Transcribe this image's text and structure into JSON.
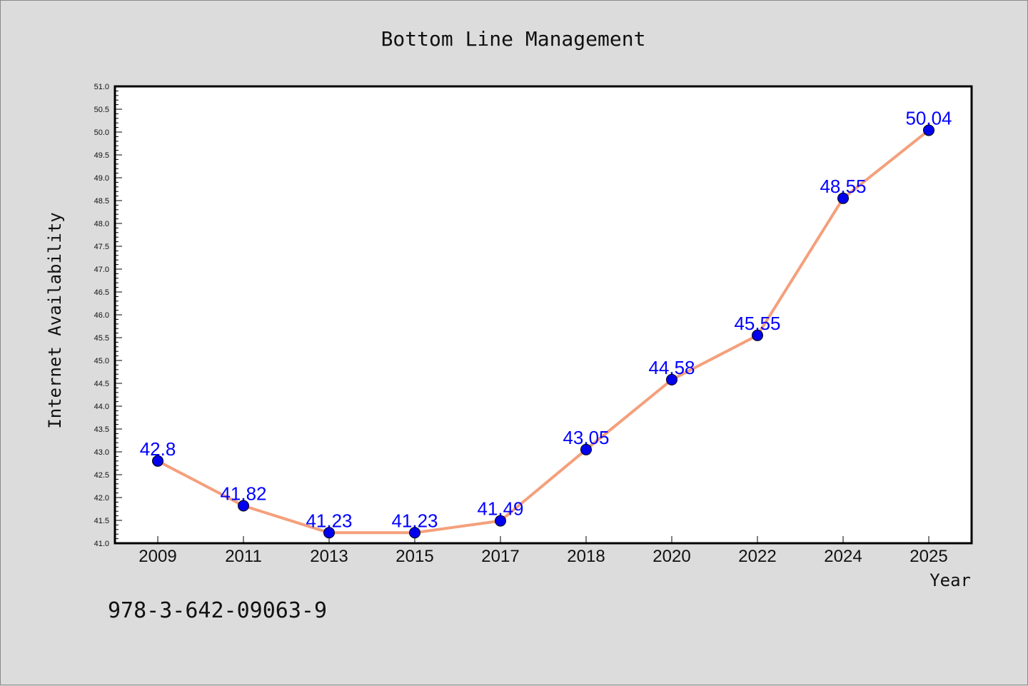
{
  "chart_data": {
    "type": "line",
    "title": "Bottom Line Management",
    "xlabel": "Year",
    "ylabel": "Internet Availability",
    "categories": [
      "2009",
      "2011",
      "2013",
      "2015",
      "2017",
      "2018",
      "2020",
      "2022",
      "2024",
      "2025"
    ],
    "series": [
      {
        "values": [
          42.8,
          41.82,
          41.23,
          41.23,
          41.49,
          43.05,
          44.58,
          45.55,
          48.55,
          50.04
        ],
        "labels": [
          "42.8",
          "41.82",
          "41.23",
          "41.23",
          "41.49",
          "43.05",
          "44.58",
          "45.55",
          "48.55",
          "50.04"
        ]
      }
    ],
    "ylim": [
      41.0,
      51.0
    ],
    "yticks": [
      "41.0",
      "41.5",
      "42.0",
      "42.5",
      "43.0",
      "43.5",
      "44.0",
      "44.5",
      "45.0",
      "45.5",
      "46.0",
      "46.5",
      "47.0",
      "47.5",
      "48.0",
      "48.5",
      "49.0",
      "49.5",
      "50.0",
      "50.5",
      "51.0"
    ],
    "grid": false,
    "colors": {
      "background": "#dcdcdc",
      "plot_area": "#ffffff",
      "line": "#f4a07c",
      "marker": "#0000ee",
      "data_label": "#0000ff"
    }
  },
  "footer_text": "978-3-642-09063-9"
}
